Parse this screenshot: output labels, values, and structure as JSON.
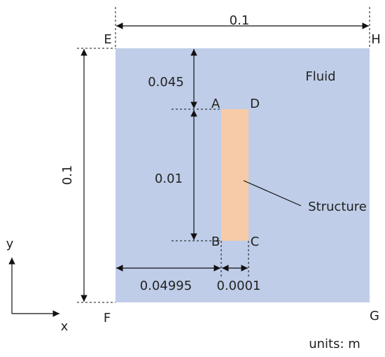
{
  "dimensions": {
    "width": "0.1",
    "height": "0.1",
    "top_gap": "0.045",
    "structure_height": "0.01",
    "left_gap": "0.04995",
    "structure_width": "0.0001"
  },
  "corners": {
    "E": "E",
    "H": "H",
    "F": "F",
    "G": "G"
  },
  "structure_corners": {
    "A": "A",
    "B": "B",
    "C": "C",
    "D": "D"
  },
  "regions": {
    "fluid": "Fluid",
    "structure": "Structure"
  },
  "axes": {
    "x": "x",
    "y": "y"
  },
  "units": "units: m"
}
